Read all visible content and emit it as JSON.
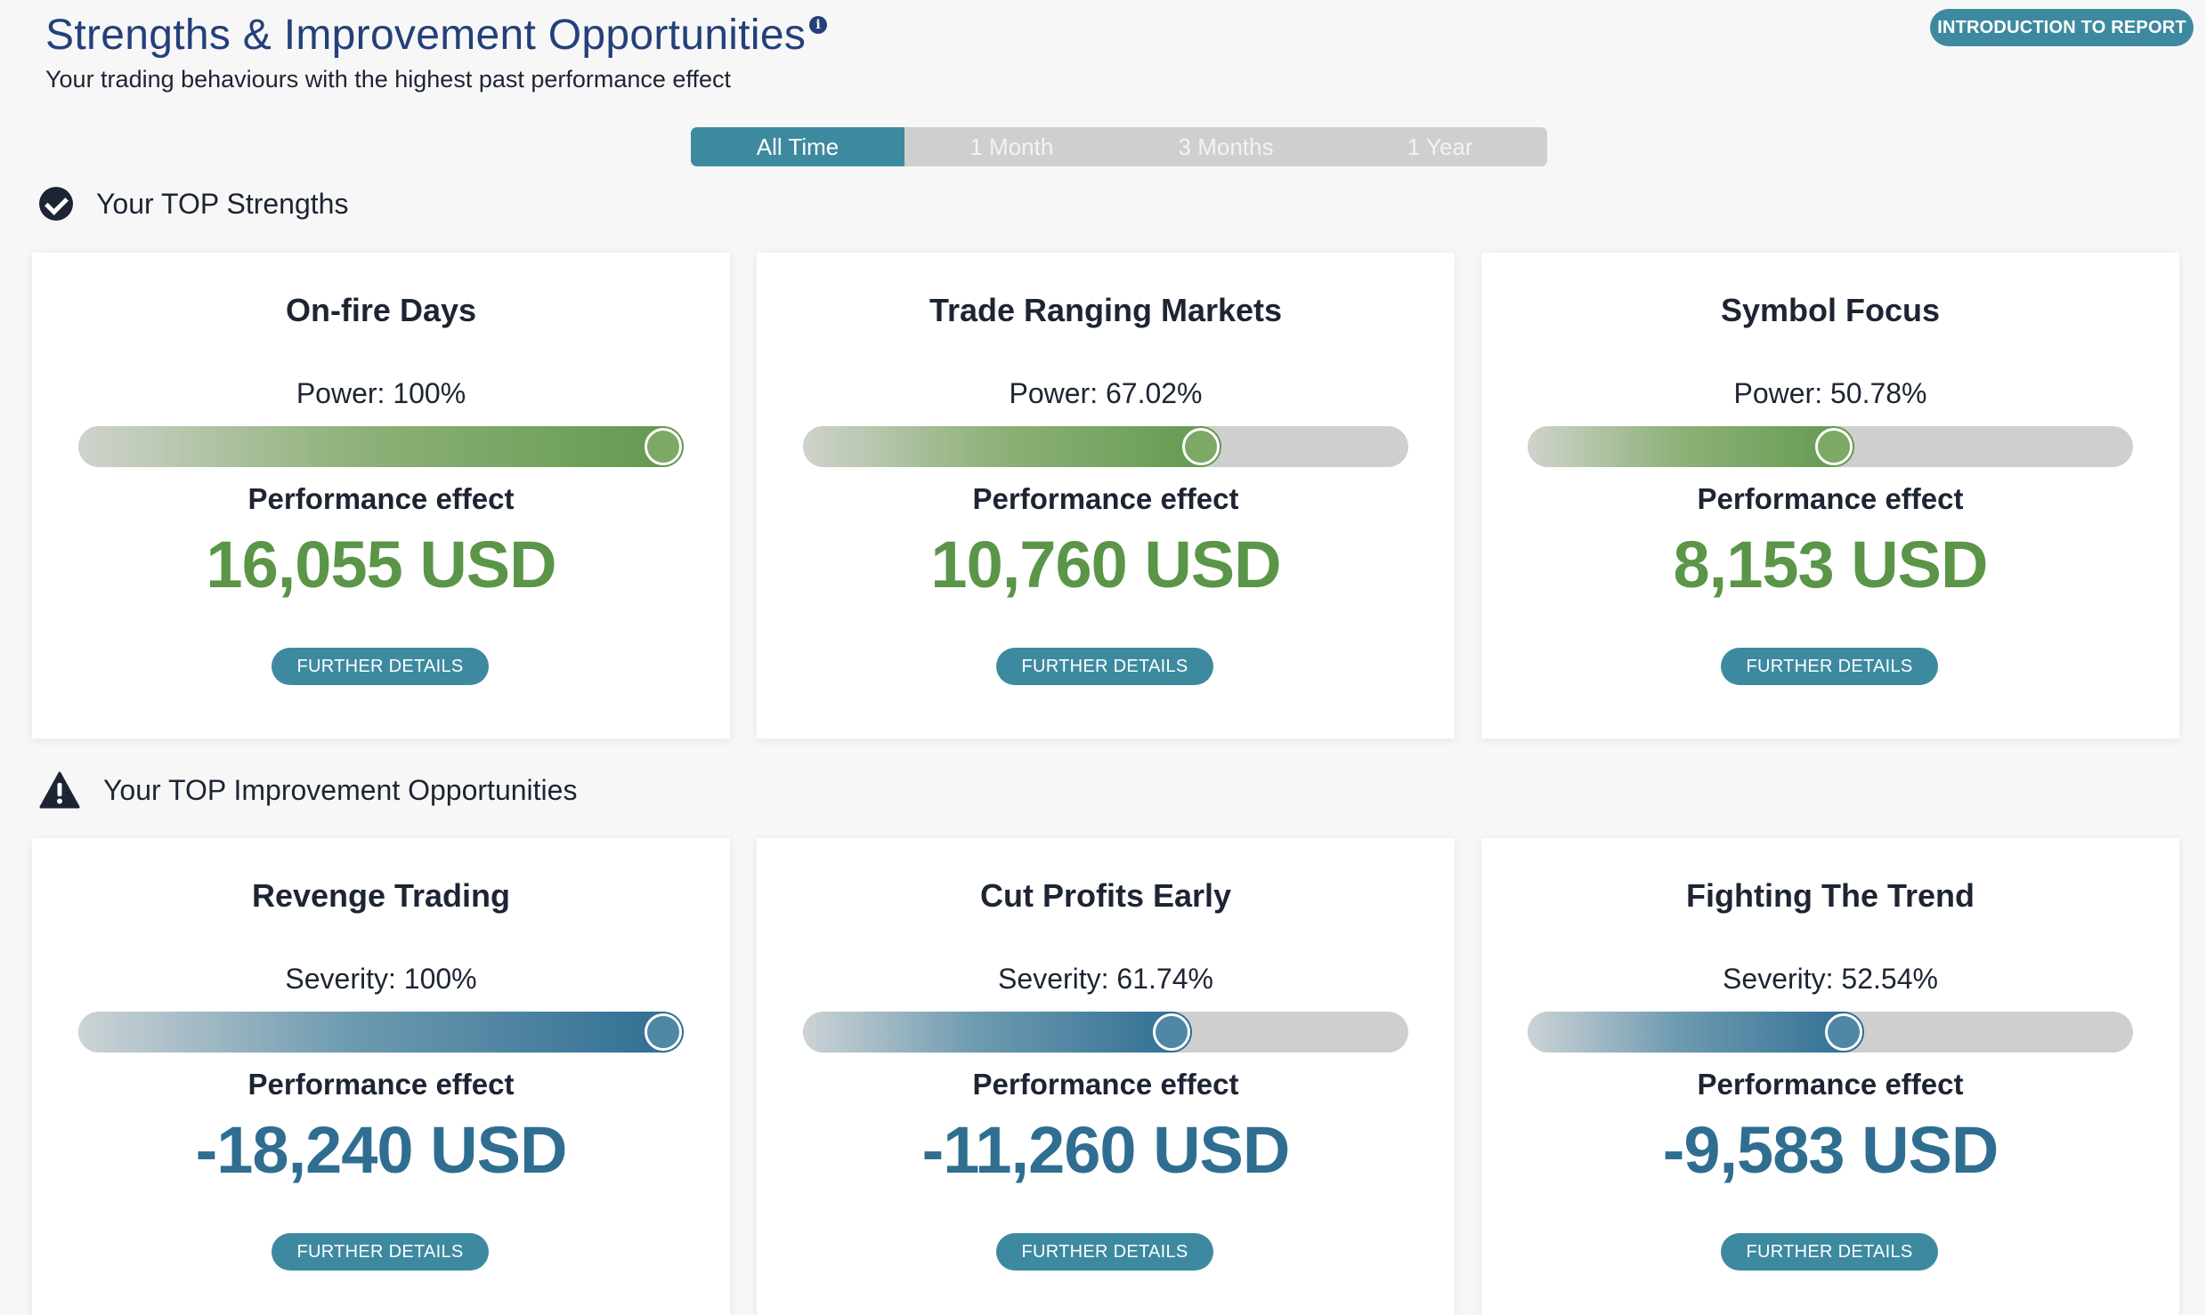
{
  "header": {
    "title": "Strengths & Improvement Opportunities",
    "info_icon": "info-icon",
    "subtitle": "Your trading behaviours with the highest past performance effect",
    "intro_button": "INTRODUCTION TO REPORT"
  },
  "periods": [
    {
      "label": "All Time",
      "active": true
    },
    {
      "label": "1 Month",
      "active": false
    },
    {
      "label": "3 Months",
      "active": false
    },
    {
      "label": "1 Year",
      "active": false
    }
  ],
  "strengths": {
    "heading": "Your TOP Strengths",
    "icon": "check-circle-icon",
    "cards": [
      {
        "title": "On-fire Days",
        "metric": "Power: 100%",
        "level": 1.0,
        "pe_label": "Performance effect",
        "value": "16,055 USD",
        "button": "FURTHER DETAILS"
      },
      {
        "title": "Trade Ranging Markets",
        "metric": "Power: 67.02%",
        "level": 0.6702,
        "pe_label": "Performance effect",
        "value": "10,760 USD",
        "button": "FURTHER DETAILS"
      },
      {
        "title": "Symbol Focus",
        "metric": "Power: 50.78%",
        "level": 0.5078,
        "pe_label": "Performance effect",
        "value": "8,153 USD",
        "button": "FURTHER DETAILS"
      }
    ]
  },
  "improvements": {
    "heading": "Your TOP Improvement Opportunities",
    "icon": "warning-icon",
    "cards": [
      {
        "title": "Revenge Trading",
        "metric": "Severity: 100%",
        "level": 1.0,
        "pe_label": "Performance effect",
        "value": "-18,240 USD",
        "button": "FURTHER DETAILS"
      },
      {
        "title": "Cut Profits Early",
        "metric": "Severity: 61.74%",
        "level": 0.6174,
        "pe_label": "Performance effect",
        "value": "-11,260 USD",
        "button": "FURTHER DETAILS"
      },
      {
        "title": "Fighting The Trend",
        "metric": "Severity: 52.54%",
        "level": 0.5254,
        "pe_label": "Performance effect",
        "value": "-9,583 USD",
        "button": "FURTHER DETAILS"
      }
    ]
  },
  "colors": {
    "accent": "#3d8aa0",
    "title": "#23407a",
    "strength_value": "#5a9548",
    "improvement_value": "#2f6e91"
  }
}
